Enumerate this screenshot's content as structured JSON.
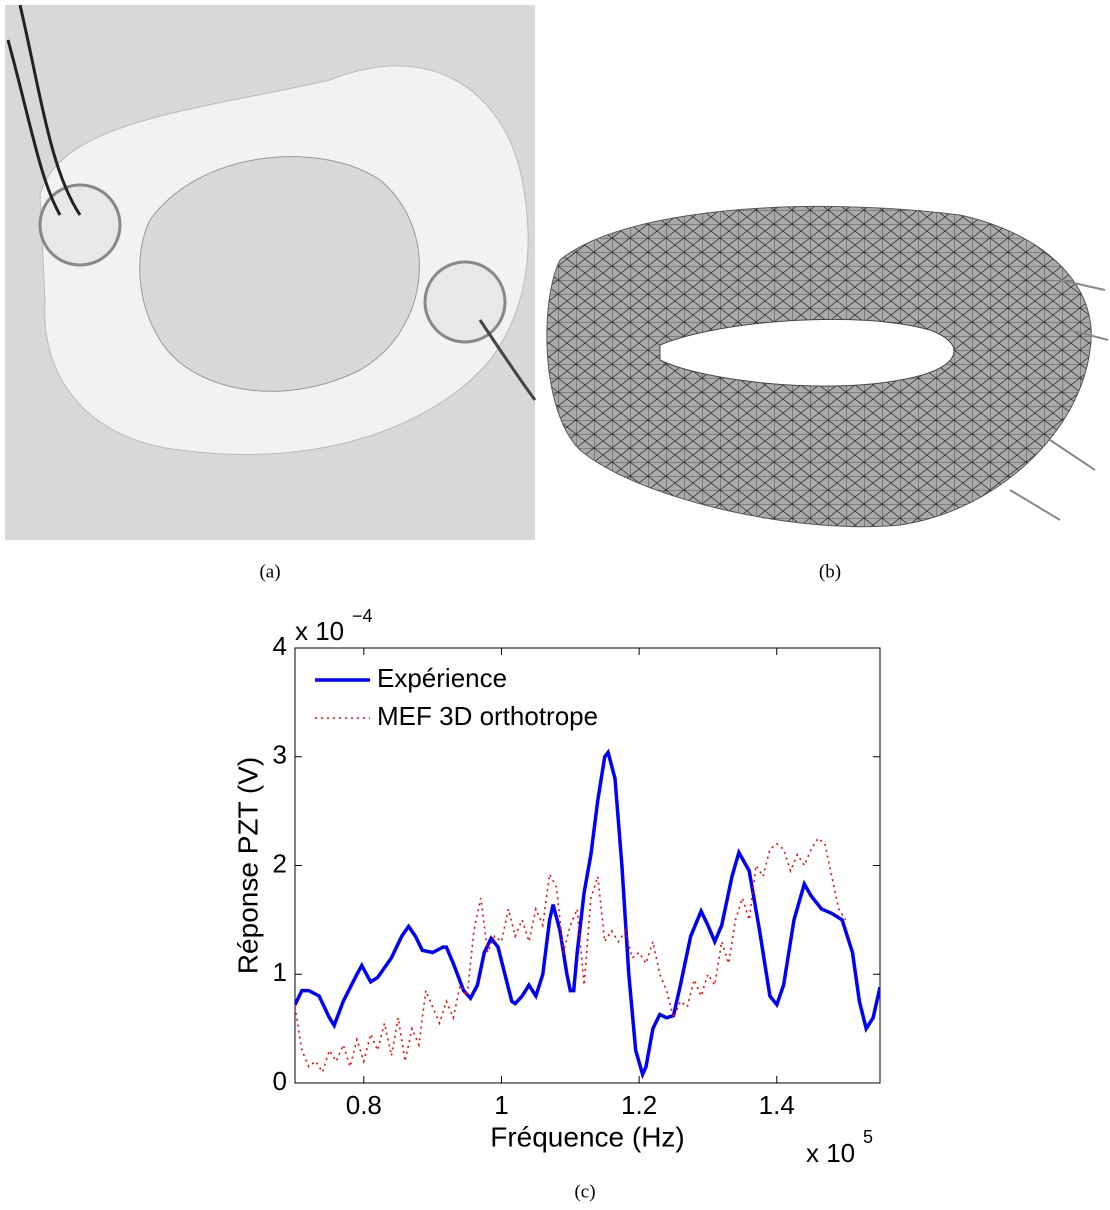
{
  "figure": {
    "captions": [
      "(a)",
      "(b)",
      "(c)"
    ]
  },
  "chart_data": {
    "type": "line",
    "xlabel": "Fréquence (Hz)",
    "ylabel": "Réponse PZT (V)",
    "x_multiplier": {
      "base": "x 10",
      "exponent": "5"
    },
    "y_multiplier": {
      "base": "x 10",
      "exponent": "−4"
    },
    "xlim": [
      0.7,
      1.55
    ],
    "ylim": [
      0,
      4
    ],
    "xticks": [
      0.8,
      1,
      1.2,
      1.4
    ],
    "yticks": [
      0,
      1,
      2,
      3,
      4
    ],
    "grid": false,
    "legend": "upper left",
    "series": [
      {
        "name": "Expérience",
        "color": "#0000ff",
        "dash": "solid",
        "x": [
          0.7,
          0.71,
          0.72,
          0.735,
          0.75,
          0.757,
          0.77,
          0.79,
          0.797,
          0.81,
          0.82,
          0.84,
          0.855,
          0.865,
          0.875,
          0.885,
          0.9,
          0.915,
          0.92,
          0.93,
          0.945,
          0.955,
          0.965,
          0.975,
          0.985,
          0.995,
          1.005,
          1.015,
          1.02,
          1.03,
          1.04,
          1.045,
          1.05,
          1.06,
          1.07,
          1.075,
          1.085,
          1.095,
          1.1,
          1.105,
          1.11,
          1.12,
          1.13,
          1.14,
          1.15,
          1.155,
          1.165,
          1.175,
          1.185,
          1.195,
          1.205,
          1.21,
          1.22,
          1.23,
          1.24,
          1.25,
          1.26,
          1.275,
          1.29,
          1.3,
          1.31,
          1.32,
          1.335,
          1.345,
          1.36,
          1.375,
          1.39,
          1.4,
          1.41,
          1.425,
          1.44,
          1.45,
          1.465,
          1.48,
          1.495,
          1.51,
          1.52,
          1.53,
          1.54,
          1.55
        ],
        "values": [
          0.72,
          0.85,
          0.85,
          0.8,
          0.6,
          0.53,
          0.75,
          1.0,
          1.08,
          0.93,
          0.97,
          1.15,
          1.35,
          1.44,
          1.35,
          1.22,
          1.2,
          1.25,
          1.25,
          1.1,
          0.85,
          0.78,
          0.9,
          1.2,
          1.33,
          1.25,
          1.0,
          0.75,
          0.73,
          0.8,
          0.9,
          0.85,
          0.8,
          1.0,
          1.5,
          1.64,
          1.4,
          1.0,
          0.85,
          0.85,
          1.2,
          1.75,
          2.1,
          2.6,
          3.0,
          3.04,
          2.8,
          2.0,
          1.0,
          0.3,
          0.08,
          0.15,
          0.5,
          0.63,
          0.6,
          0.62,
          0.9,
          1.35,
          1.58,
          1.45,
          1.3,
          1.45,
          1.9,
          2.12,
          1.95,
          1.4,
          0.8,
          0.72,
          0.9,
          1.5,
          1.83,
          1.72,
          1.6,
          1.56,
          1.5,
          1.2,
          0.75,
          0.5,
          0.6,
          0.88
        ]
      },
      {
        "name": "MEF 3D orthotrope",
        "color": "#ff0000",
        "dash": "dotted",
        "x": [
          0.7,
          0.71,
          0.72,
          0.73,
          0.74,
          0.75,
          0.76,
          0.77,
          0.78,
          0.79,
          0.8,
          0.81,
          0.82,
          0.83,
          0.84,
          0.85,
          0.86,
          0.87,
          0.88,
          0.89,
          0.9,
          0.91,
          0.92,
          0.93,
          0.94,
          0.95,
          0.96,
          0.97,
          0.98,
          0.99,
          1.0,
          1.01,
          1.02,
          1.03,
          1.04,
          1.05,
          1.06,
          1.07,
          1.08,
          1.09,
          1.1,
          1.11,
          1.12,
          1.13,
          1.14,
          1.15,
          1.16,
          1.17,
          1.18,
          1.19,
          1.2,
          1.21,
          1.22,
          1.23,
          1.24,
          1.25,
          1.26,
          1.27,
          1.28,
          1.29,
          1.3,
          1.31,
          1.32,
          1.33,
          1.34,
          1.35,
          1.36,
          1.37,
          1.38,
          1.39,
          1.4,
          1.41,
          1.42,
          1.43,
          1.44,
          1.45,
          1.46,
          1.47,
          1.48,
          1.49,
          1.5
        ],
        "values": [
          0.7,
          0.3,
          0.15,
          0.2,
          0.1,
          0.3,
          0.2,
          0.35,
          0.15,
          0.4,
          0.2,
          0.45,
          0.3,
          0.55,
          0.25,
          0.6,
          0.2,
          0.5,
          0.35,
          0.85,
          0.7,
          0.55,
          0.75,
          0.6,
          0.9,
          0.8,
          1.4,
          1.7,
          1.2,
          1.35,
          1.3,
          1.6,
          1.35,
          1.5,
          1.3,
          1.6,
          1.45,
          1.92,
          1.8,
          1.2,
          1.45,
          1.6,
          0.9,
          1.7,
          1.9,
          1.3,
          1.4,
          1.3,
          1.4,
          1.15,
          1.2,
          1.1,
          1.3,
          1.0,
          0.85,
          0.6,
          0.75,
          0.7,
          0.95,
          0.8,
          1.0,
          0.9,
          1.3,
          1.1,
          1.5,
          1.7,
          1.5,
          2.0,
          1.9,
          2.15,
          2.2,
          2.15,
          1.95,
          2.1,
          2.0,
          2.15,
          2.25,
          2.2,
          1.9,
          1.6,
          1.5
        ]
      }
    ]
  }
}
